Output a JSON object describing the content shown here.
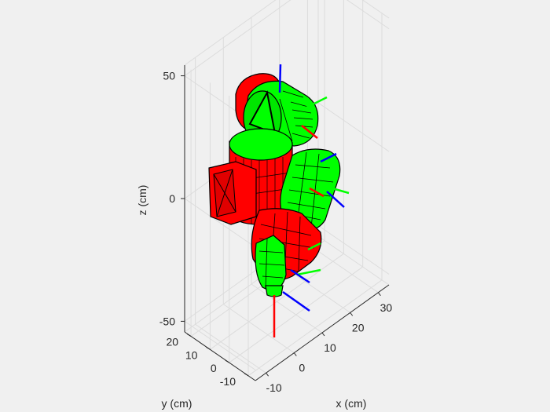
{
  "figure": {
    "background": "#f0f0f0",
    "axes_color": "#262626",
    "grid_color": "#dcdcdc"
  },
  "chart_data": {
    "type": "3d-robot-arm-render",
    "title": "",
    "xlabel": "x (cm)",
    "ylabel": "y (cm)",
    "zlabel": "z (cm)",
    "x_ticks": [
      "-10",
      "0",
      "10",
      "20",
      "30"
    ],
    "y_ticks": [
      "-10",
      "0",
      "10",
      "20"
    ],
    "z_ticks": [
      "-50",
      "0",
      "50"
    ],
    "grid": true,
    "box": "partial",
    "colors": {
      "link_red": "#ff0000",
      "link_green": "#00ff00",
      "edge": "#000000",
      "frame_x_axis": "#ff0000",
      "frame_y_axis": "#00ff00",
      "frame_z_axis": "#0000ff"
    },
    "coordinate_frames": 6
  }
}
